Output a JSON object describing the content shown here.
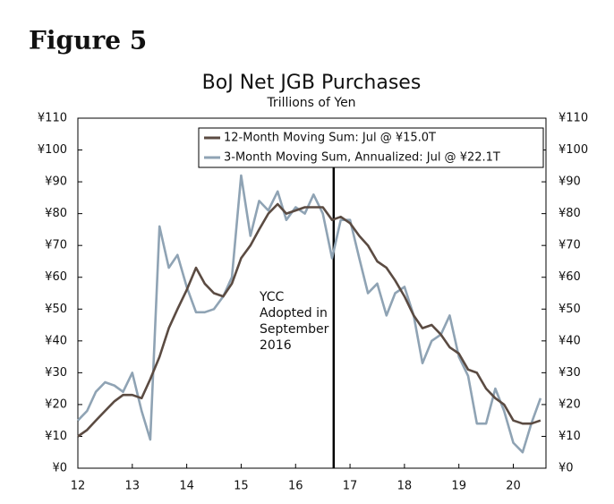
{
  "figure_label": "Figure 5",
  "chart_data": {
    "type": "line",
    "title": "BoJ Net JGB Purchases",
    "subtitle": "Trillions of Yen",
    "x": [
      12,
      12.17,
      12.33,
      12.5,
      12.67,
      12.83,
      13,
      13.17,
      13.33,
      13.5,
      13.67,
      13.83,
      14,
      14.17,
      14.33,
      14.5,
      14.67,
      14.83,
      15,
      15.17,
      15.33,
      15.5,
      15.67,
      15.83,
      16,
      16.17,
      16.33,
      16.5,
      16.67,
      16.83,
      17,
      17.17,
      17.33,
      17.5,
      17.67,
      17.83,
      18,
      18.17,
      18.33,
      18.5,
      18.67,
      18.83,
      19,
      19.17,
      19.33,
      19.5,
      19.67,
      19.83,
      20,
      20.17,
      20.33,
      20.5
    ],
    "series": [
      {
        "name": "12-Month Moving Sum: Jul @ ¥15.0T",
        "color": "#5b4b42",
        "values": [
          10,
          12,
          15,
          18,
          21,
          23,
          23,
          22,
          28,
          35,
          44,
          50,
          56,
          63,
          58,
          55,
          54,
          58,
          66,
          70,
          75,
          80,
          83,
          80,
          81,
          82,
          82,
          82,
          78,
          79,
          77,
          73,
          70,
          65,
          63,
          59,
          54,
          48,
          44,
          45,
          42,
          38,
          36,
          31,
          30,
          25,
          22,
          20,
          15,
          14,
          14,
          15
        ]
      },
      {
        "name": "3-Month Moving Sum, Annualized: Jul @ ¥22.1T",
        "color": "#8fa3b4",
        "values": [
          15,
          18,
          24,
          27,
          26,
          24,
          30,
          18,
          9,
          76,
          63,
          67,
          57,
          49,
          49,
          50,
          54,
          60,
          92,
          73,
          84,
          81,
          87,
          78,
          82,
          80,
          86,
          80,
          66,
          78,
          78,
          66,
          55,
          58,
          48,
          55,
          57,
          48,
          33,
          40,
          42,
          48,
          35,
          29,
          14,
          14,
          25,
          18,
          8,
          5,
          14,
          22
        ]
      }
    ],
    "xlim": [
      12,
      20.6
    ],
    "xticks": [
      12,
      13,
      14,
      15,
      16,
      17,
      18,
      19,
      20
    ],
    "ylim": [
      0,
      110
    ],
    "yticks": [
      {
        "value": 0,
        "label": "¥0"
      },
      {
        "value": 10,
        "label": "¥10"
      },
      {
        "value": 20,
        "label": "¥20"
      },
      {
        "value": 30,
        "label": "¥30"
      },
      {
        "value": 40,
        "label": "¥40"
      },
      {
        "value": 50,
        "label": "¥50"
      },
      {
        "value": 60,
        "label": "¥60"
      },
      {
        "value": 70,
        "label": "¥70"
      },
      {
        "value": 80,
        "label": "¥80"
      },
      {
        "value": 90,
        "label": "¥90"
      },
      {
        "value": 100,
        "label": "¥100"
      },
      {
        "value": 110,
        "label": "¥110"
      }
    ],
    "y2lim": [
      0,
      110
    ],
    "y2ticks": [
      {
        "value": 0,
        "label": "¥0"
      },
      {
        "value": 10,
        "label": "¥10"
      },
      {
        "value": 20,
        "label": "¥20"
      },
      {
        "value": 30,
        "label": "¥30"
      },
      {
        "value": 40,
        "label": "¥40"
      },
      {
        "value": 50,
        "label": "¥50"
      },
      {
        "value": 60,
        "label": "¥60"
      },
      {
        "value": 70,
        "label": "¥70"
      },
      {
        "value": 80,
        "label": "¥80"
      },
      {
        "value": 90,
        "label": "¥90"
      },
      {
        "value": 100,
        "label": "¥100"
      },
      {
        "value": 110,
        "label": "¥110"
      }
    ],
    "annotation": {
      "x": 16.7,
      "lines": [
        "YCC",
        "Adopted in",
        "September",
        "2016"
      ]
    },
    "legend": "top-right"
  }
}
